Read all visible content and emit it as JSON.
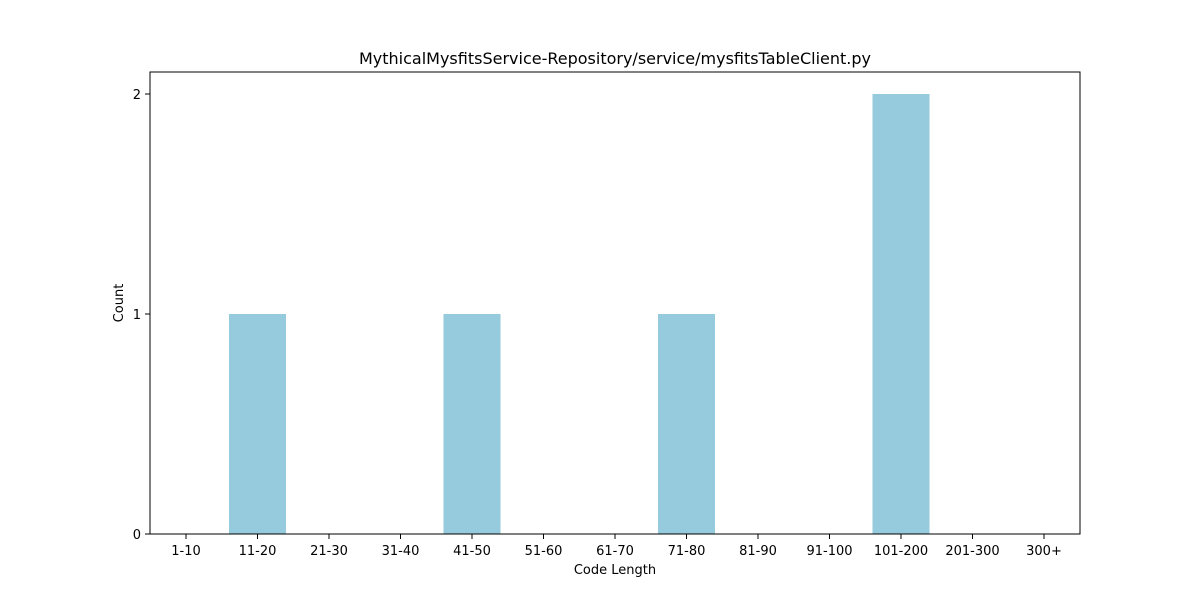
{
  "chart_data": {
    "type": "bar",
    "title": "MythicalMysfitsService-Repository/service/mysfitsTableClient.py",
    "xlabel": "Code Length",
    "ylabel": "Count",
    "categories": [
      "1-10",
      "11-20",
      "21-30",
      "31-40",
      "41-50",
      "51-60",
      "61-70",
      "71-80",
      "81-90",
      "91-100",
      "101-200",
      "201-300",
      "300+"
    ],
    "values": [
      0,
      1,
      0,
      0,
      1,
      0,
      0,
      1,
      0,
      0,
      2,
      0,
      0
    ],
    "ylim": [
      0,
      2.1
    ],
    "yticks": [
      0,
      1,
      2
    ],
    "bar_color": "#96cadd",
    "grid": false,
    "legend": "none"
  }
}
